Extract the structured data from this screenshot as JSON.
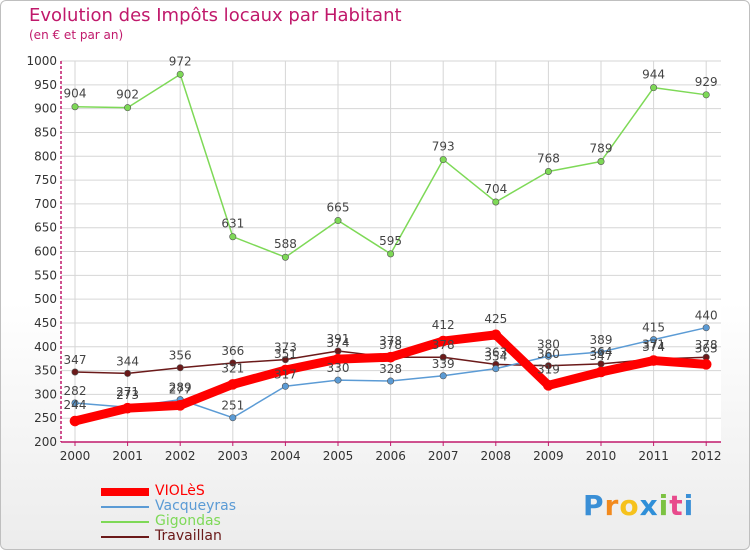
{
  "chart_data": {
    "type": "line",
    "title": "Evolution des Impôts locaux par Habitant",
    "subtitle": "(en € et par an)",
    "xlabel": "",
    "ylabel": "",
    "ylim": [
      200,
      1000
    ],
    "yticks": [
      200,
      250,
      300,
      350,
      400,
      450,
      500,
      550,
      600,
      650,
      700,
      750,
      800,
      850,
      900,
      950,
      1000
    ],
    "categories": [
      "2000",
      "2001",
      "2002",
      "2003",
      "2004",
      "2005",
      "2006",
      "2007",
      "2008",
      "2009",
      "2010",
      "2011",
      "2012"
    ],
    "grid": true,
    "legend_position": "bottom-left",
    "series": [
      {
        "name": "Travaillan",
        "color": "#6b1a1a",
        "values": [
          347,
          344,
          356,
          366,
          373,
          391,
          378,
          378,
          363,
          360,
          364,
          374,
          378
        ]
      },
      {
        "name": "Vacqueyras",
        "color": "#5b9bd5",
        "values": [
          282,
          273,
          289,
          251,
          317,
          330,
          328,
          339,
          354,
          380,
          389,
          415,
          440
        ]
      },
      {
        "name": "Gigondas",
        "color": "#7ed957",
        "values": [
          904,
          902,
          972,
          631,
          588,
          665,
          595,
          793,
          704,
          768,
          789,
          944,
          929
        ]
      },
      {
        "name": "VIOLèS",
        "color": "#ff0000",
        "values": [
          244,
          271,
          277,
          321,
          351,
          374,
          378,
          412,
          425,
          319,
          347,
          371,
          363
        ]
      }
    ]
  },
  "legend": {
    "items": [
      {
        "label": "VIOLèS",
        "color": "#ff0000"
      },
      {
        "label": "Vacqueyras",
        "color": "#5b9bd5"
      },
      {
        "label": "Gigondas",
        "color": "#7ed957"
      },
      {
        "label": "Travaillan",
        "color": "#6b1a1a"
      }
    ]
  },
  "logo": {
    "letters": [
      "P",
      "r",
      "o",
      "x",
      "i",
      "t",
      "i"
    ],
    "colors": [
      "#3a8fd6",
      "#f28a1e",
      "#f6c21c",
      "#2f8fd8",
      "#7cc242",
      "#e84a8c",
      "#3a8fd6"
    ]
  }
}
